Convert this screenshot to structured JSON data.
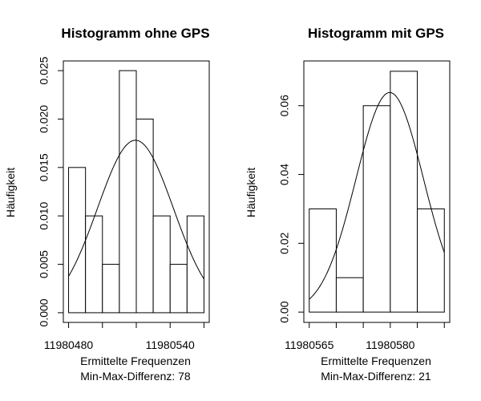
{
  "chart_data": [
    {
      "type": "bar",
      "title": "Histogramm ohne GPS",
      "xlabel": "Ermittelte Frequenzen",
      "subxlabel": "Min-Max-Differenz: 78",
      "ylabel": "Häufigkeit",
      "bins": [
        {
          "x0": 11980480,
          "x1": 11980490,
          "value": 0.015
        },
        {
          "x0": 11980490,
          "x1": 11980500,
          "value": 0.01
        },
        {
          "x0": 11980500,
          "x1": 11980510,
          "value": 0.005
        },
        {
          "x0": 11980510,
          "x1": 11980520,
          "value": 0.025
        },
        {
          "x0": 11980520,
          "x1": 11980530,
          "value": 0.02
        },
        {
          "x0": 11980530,
          "x1": 11980540,
          "value": 0.01
        },
        {
          "x0": 11980540,
          "x1": 11980550,
          "value": 0.005
        },
        {
          "x0": 11980550,
          "x1": 11980560,
          "value": 0.01
        }
      ],
      "density_curve": {
        "mean": 11980519.5,
        "sd": 22.4,
        "x_range": [
          11980480,
          11980560
        ]
      },
      "xlim": [
        11980476.9,
        11980563.1
      ],
      "ylim": [
        -0.001,
        0.026
      ],
      "x_ticks": [
        11980480,
        11980500,
        11980520,
        11980540,
        11980560
      ],
      "x_tick_labels": [
        "11980480",
        "",
        "",
        "11980540",
        ""
      ],
      "y_ticks": [
        0.0,
        0.005,
        0.01,
        0.015,
        0.02,
        0.025
      ],
      "y_tick_labels": [
        "0.000",
        "0.005",
        "0.010",
        "0.015",
        "0.020",
        "0.025"
      ]
    },
    {
      "type": "bar",
      "title": "Histogramm mit GPS",
      "xlabel": "Ermittelte Frequenzen",
      "subxlabel": "Min-Max-Differenz: 21",
      "ylabel": "Häufigkeit",
      "bins": [
        {
          "x0": 11980565,
          "x1": 11980570,
          "value": 0.03
        },
        {
          "x0": 11980570,
          "x1": 11980575,
          "value": 0.01
        },
        {
          "x0": 11980575,
          "x1": 11980580,
          "value": 0.06
        },
        {
          "x0": 11980580,
          "x1": 11980585,
          "value": 0.07
        },
        {
          "x0": 11980585,
          "x1": 11980590,
          "value": 0.03
        }
      ],
      "density_curve": {
        "mean": 11980579.9,
        "sd": 6.25,
        "x_range": [
          11980565,
          11980590
        ]
      },
      "xlim": [
        11980564.0,
        11980591.0
      ],
      "ylim": [
        -0.003,
        0.073
      ],
      "x_ticks": [
        11980565,
        11980570,
        11980575,
        11980580,
        11980585,
        11980590
      ],
      "x_tick_labels": [
        "11980565",
        "",
        "",
        "11980580",
        "",
        ""
      ],
      "y_ticks": [
        0.0,
        0.02,
        0.04,
        0.06
      ],
      "y_tick_labels": [
        "0.00",
        "0.02",
        "0.04",
        "0.06"
      ]
    }
  ]
}
